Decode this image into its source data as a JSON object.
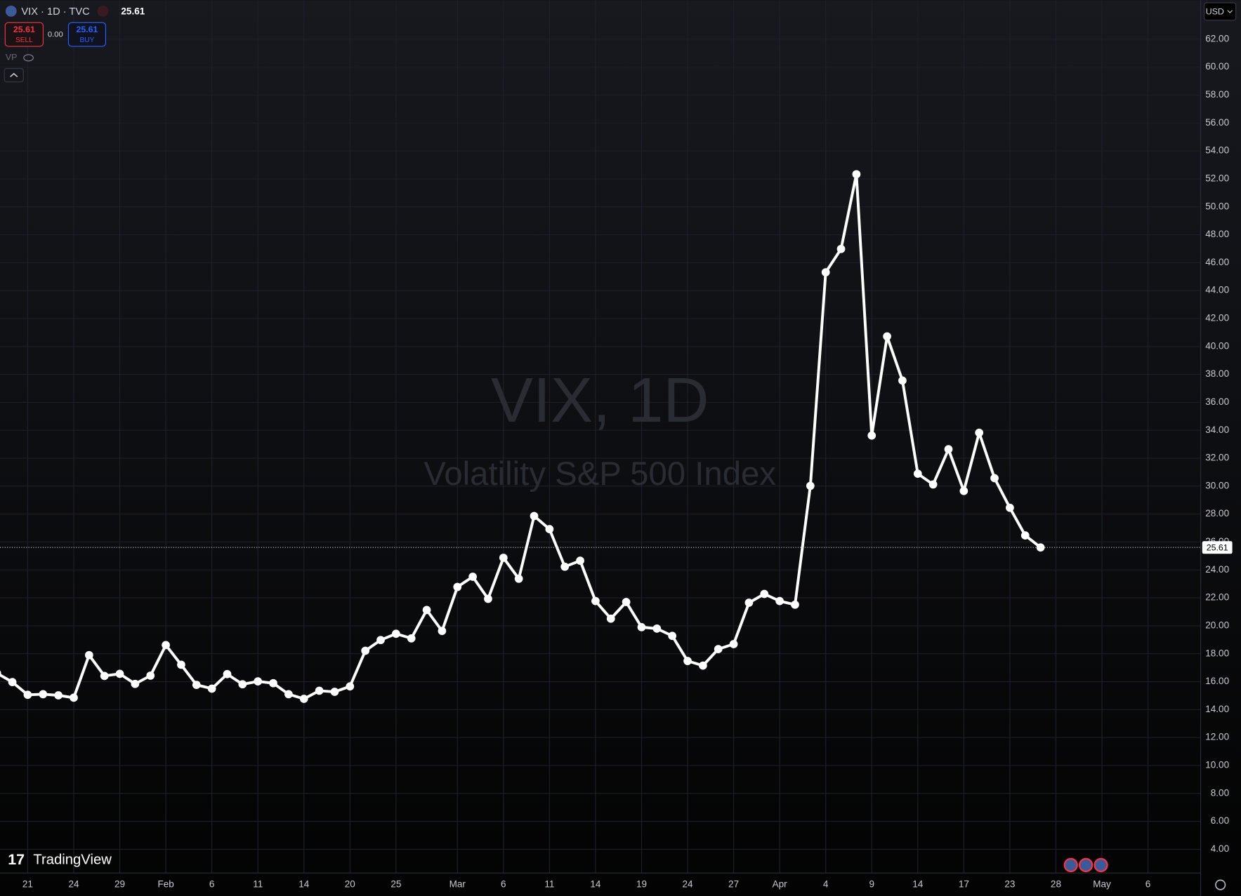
{
  "chart_data": {
    "type": "line",
    "symbol": "VIX · 1D · TVC",
    "watermark_title": "VIX, 1D",
    "watermark_subtitle": "Volatility S&P 500 Index",
    "sell_price": "25.61",
    "sell_label": "SELL",
    "spread": "0.00",
    "buy_price": "25.61",
    "buy_label": "BUY",
    "indicator": "VP",
    "currency": "USD",
    "brand": "TradingView",
    "last_price": 25.61,
    "color": "#ffffff",
    "grid": true,
    "categories": [
      null,
      null,
      "21",
      null,
      null,
      "24",
      null,
      null,
      "29",
      null,
      null,
      "Feb",
      null,
      null,
      "6",
      null,
      null,
      "11",
      null,
      null,
      "14",
      null,
      null,
      "20",
      null,
      null,
      "25",
      null,
      null,
      null,
      "Mar",
      null,
      null,
      "6",
      null,
      null,
      "11",
      null,
      null,
      "14",
      null,
      null,
      "19",
      null,
      null,
      "24",
      null,
      null,
      "27",
      null,
      null,
      "Apr",
      null,
      null,
      "4",
      null,
      null,
      "9",
      null,
      null,
      "14",
      null,
      null,
      "17",
      null,
      null,
      "23",
      null,
      null,
      "28",
      null,
      null,
      "May",
      null,
      null,
      "6",
      null,
      null,
      null
    ],
    "values": [
      16.6,
      15.97,
      15.06,
      15.1,
      15.02,
      14.85,
      17.9,
      16.41,
      16.56,
      15.84,
      16.43,
      18.62,
      17.21,
      15.77,
      15.5,
      16.54,
      15.81,
      16.02,
      15.89,
      15.1,
      14.77,
      15.35,
      15.27,
      15.66,
      18.21,
      18.98,
      19.43,
      19.1,
      21.13,
      19.63,
      22.78,
      23.51,
      21.93,
      24.87,
      23.37,
      27.86,
      26.92,
      24.23,
      24.66,
      21.77,
      20.51,
      21.7,
      19.9,
      19.8,
      19.28,
      17.48,
      17.15,
      18.33,
      18.69,
      21.65,
      22.28,
      21.77,
      21.51,
      30.02,
      45.31,
      46.98,
      52.33,
      33.62,
      40.72,
      37.56,
      30.89,
      30.12,
      32.64,
      29.65,
      33.82,
      30.57,
      28.45,
      26.47,
      25.61,
      null,
      null,
      null,
      null,
      null,
      null,
      null,
      null,
      null,
      null
    ],
    "ylim": [
      2.3,
      64.8
    ],
    "yticks": [
      {
        "value": 4,
        "label": "4.00"
      },
      {
        "value": 6,
        "label": "6.00"
      },
      {
        "value": 8,
        "label": "8.00"
      },
      {
        "value": 10,
        "label": "10.00"
      },
      {
        "value": 12,
        "label": "12.00"
      },
      {
        "value": 14,
        "label": "14.00"
      },
      {
        "value": 16,
        "label": "16.00"
      },
      {
        "value": 18,
        "label": "18.00"
      },
      {
        "value": 20,
        "label": "20.00"
      },
      {
        "value": 22,
        "label": "22.00"
      },
      {
        "value": 24,
        "label": "24.00"
      },
      {
        "value": 26,
        "label": "26.00"
      },
      {
        "value": 28,
        "label": "28.00"
      },
      {
        "value": 30,
        "label": "30.00"
      },
      {
        "value": 32,
        "label": "32.00"
      },
      {
        "value": 34,
        "label": "34.00"
      },
      {
        "value": 36,
        "label": "36.00"
      },
      {
        "value": 38,
        "label": "38.00"
      },
      {
        "value": 40,
        "label": "40.00"
      },
      {
        "value": 42,
        "label": "42.00"
      },
      {
        "value": 44,
        "label": "44.00"
      },
      {
        "value": 46,
        "label": "46.00"
      },
      {
        "value": 48,
        "label": "48.00"
      },
      {
        "value": 50,
        "label": "50.00"
      },
      {
        "value": 52,
        "label": "52.00"
      },
      {
        "value": 54,
        "label": "54.00"
      },
      {
        "value": 56,
        "label": "56.00"
      },
      {
        "value": 58,
        "label": "58.00"
      },
      {
        "value": 60,
        "label": "60.00"
      },
      {
        "value": 62,
        "label": "62.00"
      }
    ]
  }
}
